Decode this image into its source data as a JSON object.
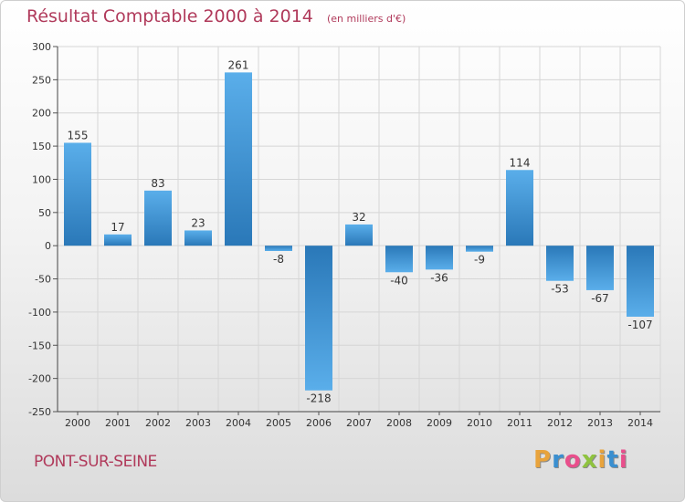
{
  "chart_data": {
    "type": "bar",
    "title": "Résultat Comptable 2000 à 2014",
    "subtitle": "(en milliers d'€)",
    "categories": [
      "2000",
      "2001",
      "2002",
      "2003",
      "2004",
      "2005",
      "2006",
      "2007",
      "2008",
      "2009",
      "2010",
      "2011",
      "2012",
      "2013",
      "2014"
    ],
    "values": [
      155,
      17,
      83,
      23,
      261,
      -8,
      -218,
      32,
      -40,
      -36,
      -9,
      114,
      -53,
      -67,
      -107
    ],
    "value_labels": [
      "155",
      "17",
      "83",
      "23",
      "261",
      "-8",
      "-218",
      "32",
      "-40",
      "-36",
      "-9",
      "114",
      "-53",
      "-67",
      "-107"
    ],
    "ylim": [
      -250,
      300
    ],
    "yticks": [
      300,
      250,
      200,
      150,
      100,
      50,
      0,
      -50,
      -100,
      -150,
      -200,
      -250
    ],
    "ytick_labels": [
      "300",
      "250",
      "200",
      "150",
      "100",
      "50",
      "0",
      "-50",
      "-100",
      "-150",
      "-200",
      "-250"
    ],
    "xlabel": "",
    "ylabel": "",
    "grid": true,
    "bar_color": "#3a8fd0"
  },
  "footer": {
    "town": "PONT-SUR-SEINE",
    "logo_letters": [
      "P",
      "r",
      "o",
      "x",
      "i",
      "t",
      "i"
    ],
    "logo_colors": [
      "#e8a33c",
      "#3a8fd0",
      "#e94f8c",
      "#8fc33f",
      "#e8a33c",
      "#3a8fd0",
      "#e94f8c"
    ]
  }
}
